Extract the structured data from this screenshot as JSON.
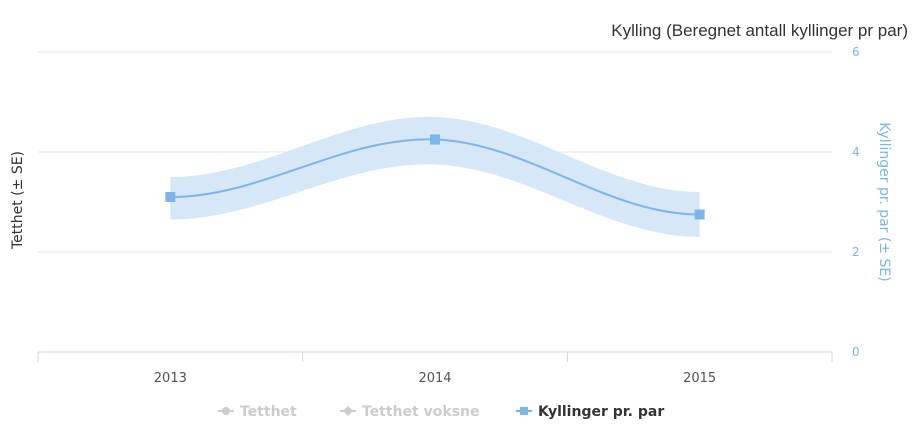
{
  "chart_data": {
    "type": "line",
    "title": "Kylling (Beregnet antall kyllinger pr par)",
    "categories": [
      "2013",
      "2014",
      "2015"
    ],
    "ylabel_left": "Tetthet (± SE)",
    "ylabel_right": "Kyllinger pr. par (± SE)",
    "yticks_right": [
      0,
      2,
      4,
      6
    ],
    "ylim": [
      0,
      6
    ],
    "grid": true,
    "series": [
      {
        "name": "Kyllinger pr. par",
        "values": [
          3.1,
          4.25,
          2.75
        ],
        "se_low": [
          2.65,
          3.75,
          2.3
        ],
        "se_high": [
          3.5,
          4.7,
          3.2
        ],
        "color": "#7cb5ec",
        "visible": true
      }
    ],
    "legend": {
      "placement": "bottom-center",
      "items": [
        {
          "name": "Tetthet",
          "state": "hidden",
          "symbol": "circle"
        },
        {
          "name": "Tetthet voksne",
          "state": "hidden",
          "symbol": "diamond"
        },
        {
          "name": "Kyllinger pr. par",
          "state": "visible",
          "symbol": "square"
        }
      ]
    },
    "colors": {
      "series": "#7cb5ec",
      "band": "#cfe3f7",
      "hidden_legend": "#cccccc",
      "grid": "#e6e6e6",
      "axis_line": "#ccd6eb"
    }
  }
}
